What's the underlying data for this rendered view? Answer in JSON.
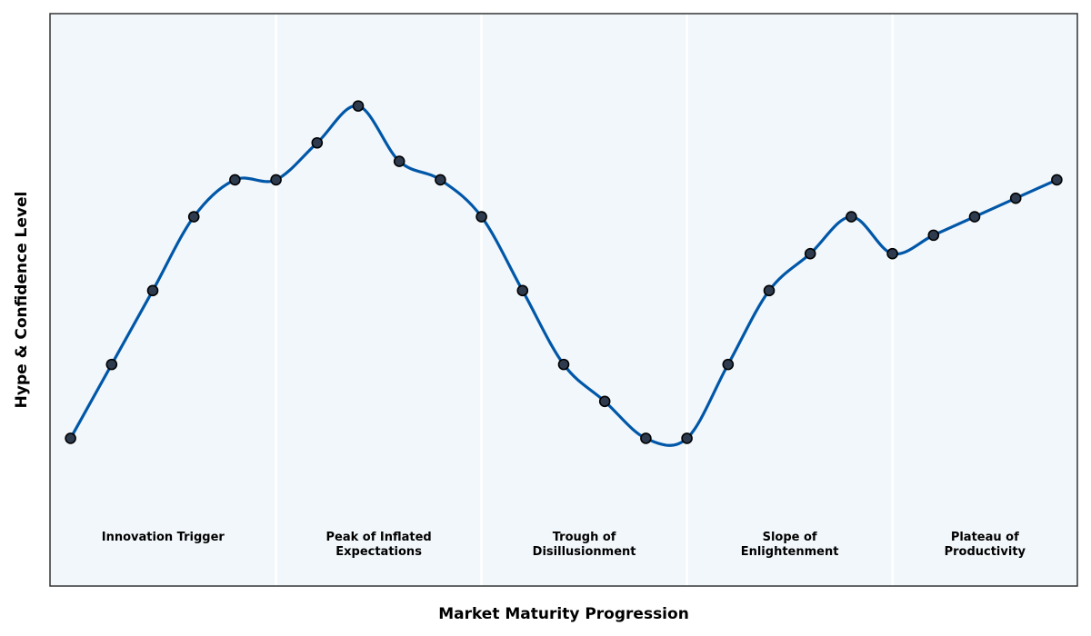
{
  "chart_data": {
    "type": "line",
    "title": "",
    "xlabel": "Market Maturity Progression",
    "ylabel": "Hype & Confidence Level",
    "x_ticks_shown": false,
    "y_ticks_shown": false,
    "grid": false,
    "legend": "none",
    "xlim": [
      -0.5,
      24.5
    ],
    "ylim": [
      0,
      15.5
    ],
    "series": [
      {
        "values": [
          4,
          6,
          8,
          10,
          11,
          11,
          12,
          13,
          11.5,
          11,
          10,
          8,
          6,
          5,
          4,
          4,
          6,
          8,
          9,
          10,
          9,
          9.5,
          10,
          10.5,
          11
        ]
      }
    ],
    "phases": [
      {
        "label_lines": [
          "Innovation Trigger"
        ],
        "x_start": -0.5,
        "x_end": 5
      },
      {
        "label_lines": [
          "Peak of Inflated",
          "Expectations"
        ],
        "x_start": 5,
        "x_end": 10
      },
      {
        "label_lines": [
          "Trough of",
          "Disillusionment"
        ],
        "x_start": 10,
        "x_end": 15
      },
      {
        "label_lines": [
          "Slope of",
          "Enlightenment"
        ],
        "x_start": 15,
        "x_end": 20
      },
      {
        "label_lines": [
          "Plateau of",
          "Productivity"
        ],
        "x_start": 20,
        "x_end": 24.5
      }
    ],
    "colors": {
      "line": "#0057a8",
      "marker_fill": "#2e3b4e",
      "marker_edge": "#000000",
      "plot_background": "#f2f7fb",
      "phase_divider": "#ffffff",
      "frame": "#333333"
    }
  }
}
